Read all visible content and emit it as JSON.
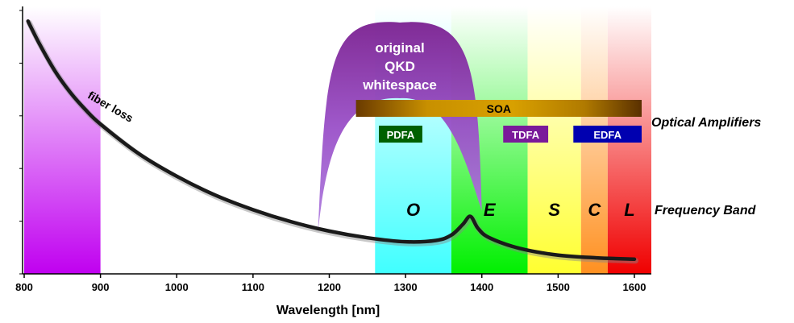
{
  "chart_data": {
    "type": "line",
    "title": "",
    "xlabel": "Wavelength [nm]",
    "ylabel": "",
    "xlim": [
      800,
      1620
    ],
    "ylim": [
      0,
      1
    ],
    "grid": false,
    "x_ticks": [
      "800",
      "900",
      "1000",
      "1100",
      "1200",
      "1300",
      "1400",
      "1500",
      "1600"
    ],
    "y_tick_count": 5,
    "series": [
      {
        "name": "fiber loss",
        "color": "#1a1a1a",
        "x": [
          805,
          820,
          840,
          860,
          880,
          900,
          950,
          1000,
          1050,
          1100,
          1150,
          1200,
          1250,
          1300,
          1340,
          1360,
          1375,
          1385,
          1395,
          1410,
          1450,
          1500,
          1550,
          1600
        ],
        "y": [
          0.945,
          0.86,
          0.76,
          0.68,
          0.615,
          0.56,
          0.45,
          0.365,
          0.295,
          0.24,
          0.195,
          0.16,
          0.135,
          0.12,
          0.125,
          0.145,
          0.185,
          0.215,
          0.17,
          0.135,
          0.095,
          0.07,
          0.06,
          0.055
        ]
      }
    ],
    "shaded_regions": [
      {
        "name": "",
        "x_range": [
          800,
          900
        ],
        "color": "#c000f0"
      },
      {
        "name": "O",
        "x_range": [
          1260,
          1360
        ],
        "color": "#40ffff"
      },
      {
        "name": "E",
        "x_range": [
          1360,
          1460
        ],
        "color": "#00f000"
      },
      {
        "name": "S",
        "x_range": [
          1460,
          1530
        ],
        "color": "#ffff30"
      },
      {
        "name": "C",
        "x_range": [
          1530,
          1565
        ],
        "color": "#ff9020"
      },
      {
        "name": "L",
        "x_range": [
          1565,
          1625
        ],
        "color": "#f00000"
      }
    ],
    "qkd_whitespace": {
      "label_lines": [
        "original",
        "QKD",
        "whitespace"
      ],
      "x_range": [
        1185,
        1400
      ],
      "color": "#9040c0"
    },
    "amplifier_bars": [
      {
        "label": "SOA",
        "x_range": [
          1235,
          1610
        ],
        "color": "#a06a00"
      },
      {
        "label": "PDFA",
        "x_range": [
          1265,
          1322
        ],
        "color": "#006000"
      },
      {
        "label": "TDFA",
        "x_range": [
          1428,
          1487
        ],
        "color": "#7a1a9a"
      },
      {
        "label": "EDFA",
        "x_range": [
          1520,
          1610
        ],
        "color": "#0000b0"
      }
    ],
    "curve_label": "fiber loss"
  },
  "labels": {
    "optical_amplifiers": "Optical Amplifiers",
    "frequency_band": "Frequency Band"
  }
}
